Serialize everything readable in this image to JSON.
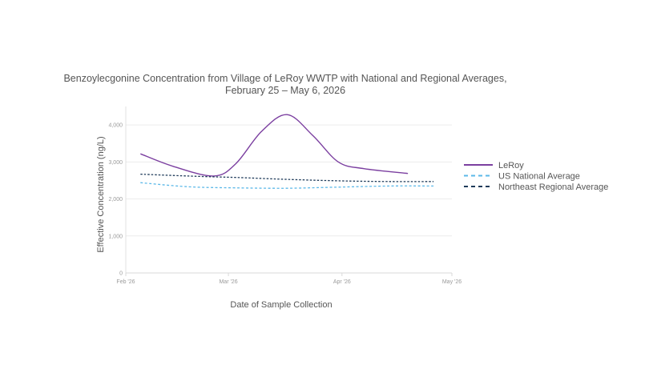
{
  "chart_data": {
    "type": "line",
    "title_line1": "Benzoylecgonine Concentration from Village of LeRoy WWTP with National and Regional Averages,",
    "title_line2": "February 25 – May 6, 2026",
    "xlabel": "Date of Sample Collection",
    "ylabel": "Effective Concentration (ng/L)",
    "ylim": [
      0,
      4500
    ],
    "yticks": [
      0,
      1000,
      2000,
      3000,
      4000
    ],
    "ytick_labels": [
      "0",
      "1,000",
      "2,000",
      "3,000",
      "4,000"
    ],
    "xlim": [
      "2026-02-01",
      "2026-05-01"
    ],
    "xticks": [
      "2026-02-01",
      "2026-03-01",
      "2026-04-01",
      "2026-05-01"
    ],
    "xtick_labels": [
      "Feb '26",
      "Mar '26",
      "Apr '26",
      "May '26"
    ],
    "grid": true,
    "legend_position": "right",
    "series": [
      {
        "name": "LeRoy",
        "color": "#7b3fa0",
        "dash": "solid",
        "points": [
          [
            "2026-02-05",
            3220
          ],
          [
            "2026-02-14",
            2880
          ],
          [
            "2026-02-25",
            2620
          ],
          [
            "2026-03-03",
            2950
          ],
          [
            "2026-03-10",
            3820
          ],
          [
            "2026-03-17",
            4280
          ],
          [
            "2026-03-24",
            3720
          ],
          [
            "2026-03-31",
            3000
          ],
          [
            "2026-04-07",
            2820
          ],
          [
            "2026-04-19",
            2690
          ]
        ]
      },
      {
        "name": "US National Average",
        "color": "#5bb8e8",
        "dash": "dashed",
        "points": [
          [
            "2026-02-05",
            2440
          ],
          [
            "2026-02-18",
            2330
          ],
          [
            "2026-03-03",
            2300
          ],
          [
            "2026-03-17",
            2290
          ],
          [
            "2026-03-31",
            2320
          ],
          [
            "2026-04-14",
            2350
          ],
          [
            "2026-04-26",
            2350
          ]
        ]
      },
      {
        "name": "Northeast Regional Average",
        "color": "#1f3b5a",
        "dash": "dashed",
        "points": [
          [
            "2026-02-05",
            2670
          ],
          [
            "2026-02-18",
            2620
          ],
          [
            "2026-03-03",
            2580
          ],
          [
            "2026-03-17",
            2530
          ],
          [
            "2026-03-31",
            2490
          ],
          [
            "2026-04-14",
            2470
          ],
          [
            "2026-04-26",
            2470
          ]
        ]
      }
    ]
  }
}
